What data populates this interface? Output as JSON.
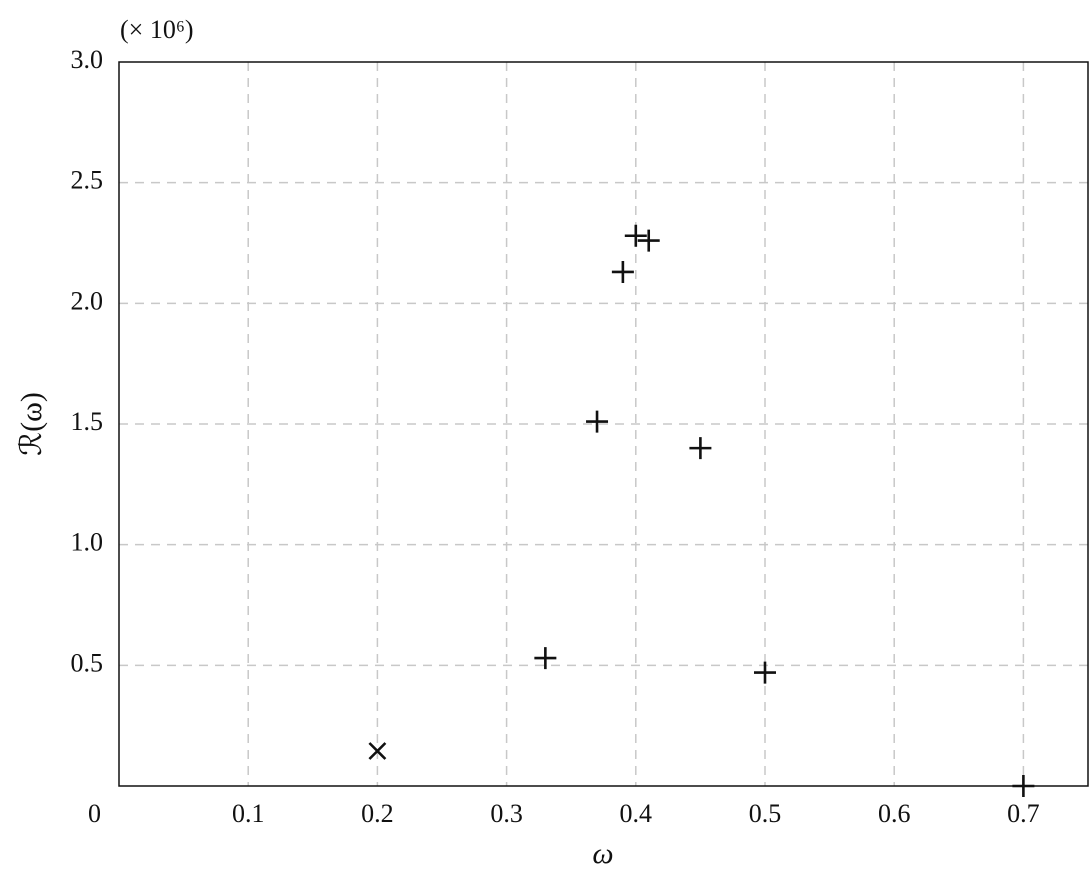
{
  "chart_data": {
    "type": "scatter",
    "x_label": "ω",
    "y_label": "ℛ(ω)",
    "y_multiplier": "(× 10⁶)",
    "xlim": [
      0,
      0.75
    ],
    "ylim": [
      0,
      3.0
    ],
    "xticks": [
      0.1,
      0.2,
      0.3,
      0.4,
      0.5,
      0.6,
      0.7
    ],
    "yticks": [
      0,
      0.5,
      {
        "value": 1,
        "label": "1.0"
      },
      1.5,
      {
        "value": 2,
        "label": "2.0"
      },
      2.5,
      {
        "value": 3,
        "label": "3.0"
      }
    ],
    "grid": true,
    "series": [
      {
        "marker": "plus",
        "color": "#111111",
        "x": [
          0.33,
          0.37,
          0.39,
          0.4,
          0.41,
          0.45,
          0.5,
          0.7
        ],
        "values": [
          0.53,
          1.51,
          2.13,
          2.28,
          2.26,
          1.4,
          0.47,
          0
        ]
      },
      {
        "marker": "cross",
        "color": "#111111",
        "x": [
          0.2
        ],
        "values": [
          0.145
        ]
      }
    ]
  }
}
